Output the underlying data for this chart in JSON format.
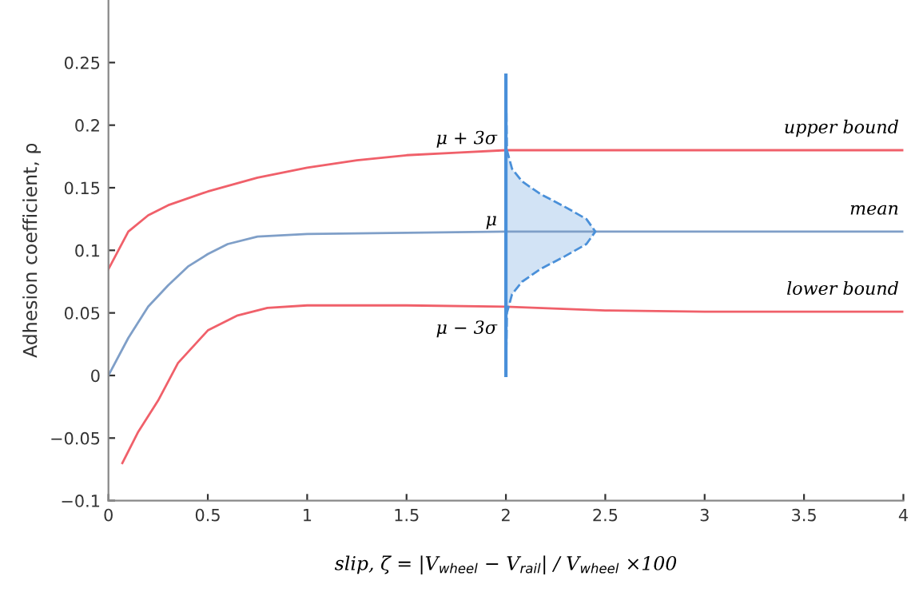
{
  "chart_data": {
    "type": "line",
    "xlabel": "slip, ζ = |V$_{wheel}$ − V$_{rail}$| / V$_{wheel}$ ×100",
    "ylabel": "Adhesion coefficient, ρ",
    "xlim": [
      0,
      4
    ],
    "ylim": [
      -0.1,
      0.3
    ],
    "xticks": [
      0,
      0.5,
      1,
      1.5,
      2,
      2.5,
      3,
      3.5,
      4
    ],
    "yticks": [
      {
        "value": -0.1,
        "label": "−0.1"
      },
      {
        "value": -0.05,
        "label": "−0.05"
      },
      0,
      0.05,
      0.1,
      0.15,
      0.2,
      0.25
    ],
    "grid": false,
    "legend": false,
    "series": [
      {
        "color": "#f0606a",
        "x": [
          0,
          0.05,
          0.1,
          0.2,
          0.3,
          0.5,
          0.75,
          1,
          1.25,
          1.5,
          1.75,
          2,
          2.5,
          3,
          4
        ],
        "values": [
          0.085,
          0.1,
          0.115,
          0.128,
          0.136,
          0.147,
          0.158,
          0.166,
          0.172,
          0.176,
          0.178,
          0.18,
          0.18,
          0.18,
          0.18
        ]
      },
      {
        "color": "#7f9fc8",
        "x": [
          0,
          0.1,
          0.2,
          0.3,
          0.4,
          0.5,
          0.6,
          0.75,
          1,
          1.5,
          2,
          3,
          4
        ],
        "values": [
          0.0,
          0.03,
          0.055,
          0.072,
          0.087,
          0.097,
          0.105,
          0.111,
          0.113,
          0.114,
          0.115,
          0.115,
          0.115
        ]
      },
      {
        "color": "#f0606a",
        "x": [
          0.07,
          0.15,
          0.25,
          0.35,
          0.5,
          0.65,
          0.8,
          1,
          1.5,
          2,
          2.5,
          3,
          4
        ],
        "values": [
          -0.07,
          -0.045,
          -0.02,
          0.01,
          0.036,
          0.048,
          0.054,
          0.056,
          0.056,
          0.055,
          0.052,
          0.051,
          0.051
        ]
      },
      {
        "type": "area",
        "color": "#4a90d9",
        "x": [
          2.0,
          2.005,
          2.031,
          2.082,
          2.173,
          2.294,
          2.405,
          2.45,
          2.405,
          2.294,
          2.173,
          2.082,
          2.031,
          2.005,
          2.0
        ],
        "values": [
          0.0,
          0.05,
          0.065,
          0.075,
          0.085,
          0.095,
          0.105,
          0.115,
          0.125,
          0.135,
          0.145,
          0.155,
          0.165,
          0.18,
          0.24
        ]
      }
    ],
    "ref_lines": [
      {
        "axis": "x",
        "value": 2,
        "label": null,
        "color": "#4a90d9"
      }
    ],
    "annotations": [
      "μ + 3σ",
      "μ",
      "μ − 3σ",
      "upper bound",
      "mean",
      "lower bound"
    ]
  }
}
